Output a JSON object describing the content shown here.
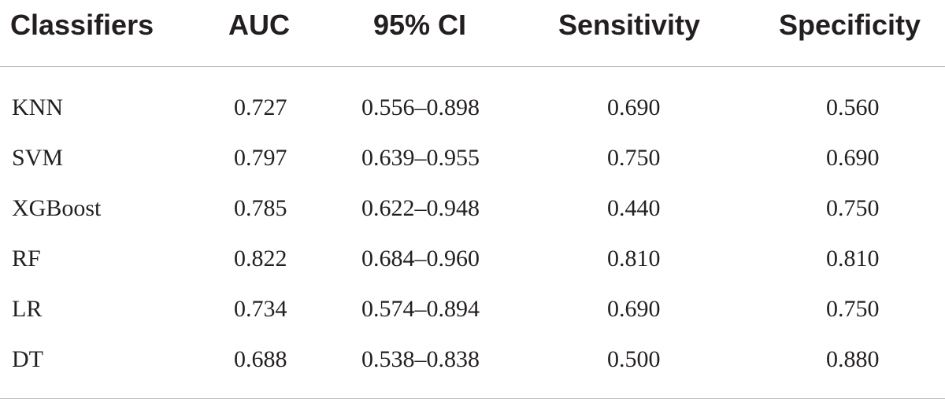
{
  "table": {
    "headers": [
      "Classifiers",
      "AUC",
      "95% CI",
      "Sensitivity",
      "Specificity"
    ],
    "rows": [
      [
        "KNN",
        "0.727",
        "0.556–0.898",
        "0.690",
        "0.560"
      ],
      [
        "SVM",
        "0.797",
        "0.639–0.955",
        "0.750",
        "0.690"
      ],
      [
        "XGBoost",
        "0.785",
        "0.622–0.948",
        "0.440",
        "0.750"
      ],
      [
        "RF",
        "0.822",
        "0.684–0.960",
        "0.810",
        "0.810"
      ],
      [
        "LR",
        "0.734",
        "0.574–0.894",
        "0.690",
        "0.750"
      ],
      [
        "DT",
        "0.688",
        "0.538–0.838",
        "0.500",
        "0.880"
      ]
    ]
  }
}
